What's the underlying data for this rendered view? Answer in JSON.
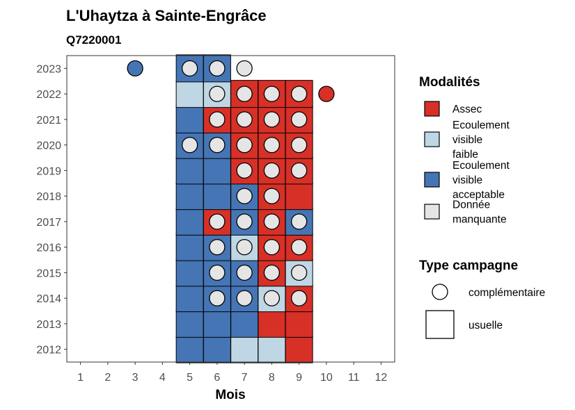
{
  "chart_data": {
    "type": "heatmap",
    "title": "L'Uhaytza à Sainte-Engrâce",
    "subtitle": "Q7220001",
    "xlabel": "Mois",
    "ylabel": "",
    "x_ticks": [
      "1",
      "2",
      "3",
      "4",
      "5",
      "6",
      "7",
      "8",
      "9",
      "10",
      "11",
      "12"
    ],
    "y_ticks": [
      "2012",
      "2013",
      "2014",
      "2015",
      "2016",
      "2017",
      "2018",
      "2019",
      "2020",
      "2021",
      "2022",
      "2023"
    ],
    "xlim": [
      0.5,
      12.5
    ],
    "ylim": [
      2011.5,
      2023.5
    ],
    "colors": {
      "assec": "#d73027",
      "faible": "#bfd7e4",
      "acceptable": "#4575b4",
      "manquante": "#e5e5e5"
    },
    "legend_modalites": {
      "title": "Modalités",
      "items": [
        {
          "key": "assec",
          "lines": [
            "Assec"
          ]
        },
        {
          "key": "faible",
          "lines": [
            "Ecoulement",
            "visible",
            "faible"
          ]
        },
        {
          "key": "acceptable",
          "lines": [
            "Ecoulement",
            "visible",
            "acceptable"
          ]
        },
        {
          "key": "manquante",
          "lines": [
            "Donnée",
            "manquante"
          ]
        }
      ]
    },
    "legend_campagne": {
      "title": "Type campagne",
      "items": [
        {
          "shape": "circle",
          "label": "complémentaire"
        },
        {
          "shape": "square",
          "label": "usuelle"
        }
      ]
    },
    "observations": [
      {
        "year": 2012,
        "month": 5,
        "value": "acceptable",
        "type": "usuelle"
      },
      {
        "year": 2012,
        "month": 6,
        "value": "acceptable",
        "type": "usuelle"
      },
      {
        "year": 2012,
        "month": 7,
        "value": "faible",
        "type": "usuelle"
      },
      {
        "year": 2012,
        "month": 8,
        "value": "faible",
        "type": "usuelle"
      },
      {
        "year": 2012,
        "month": 9,
        "value": "assec",
        "type": "usuelle"
      },
      {
        "year": 2013,
        "month": 5,
        "value": "acceptable",
        "type": "usuelle"
      },
      {
        "year": 2013,
        "month": 6,
        "value": "acceptable",
        "type": "usuelle"
      },
      {
        "year": 2013,
        "month": 7,
        "value": "acceptable",
        "type": "usuelle"
      },
      {
        "year": 2013,
        "month": 8,
        "value": "assec",
        "type": "usuelle"
      },
      {
        "year": 2013,
        "month": 9,
        "value": "assec",
        "type": "usuelle"
      },
      {
        "year": 2014,
        "month": 5,
        "value": "acceptable",
        "type": "usuelle"
      },
      {
        "year": 2014,
        "month": 6,
        "value": "acceptable",
        "type": "usuelle"
      },
      {
        "year": 2014,
        "month": 6,
        "value": "manquante",
        "type": "complémentaire"
      },
      {
        "year": 2014,
        "month": 7,
        "value": "acceptable",
        "type": "usuelle"
      },
      {
        "year": 2014,
        "month": 7,
        "value": "manquante",
        "type": "complémentaire"
      },
      {
        "year": 2014,
        "month": 8,
        "value": "faible",
        "type": "usuelle"
      },
      {
        "year": 2014,
        "month": 8,
        "value": "manquante",
        "type": "complémentaire"
      },
      {
        "year": 2014,
        "month": 9,
        "value": "assec",
        "type": "usuelle"
      },
      {
        "year": 2014,
        "month": 9,
        "value": "manquante",
        "type": "complémentaire"
      },
      {
        "year": 2015,
        "month": 5,
        "value": "acceptable",
        "type": "usuelle"
      },
      {
        "year": 2015,
        "month": 6,
        "value": "acceptable",
        "type": "usuelle"
      },
      {
        "year": 2015,
        "month": 6,
        "value": "manquante",
        "type": "complémentaire"
      },
      {
        "year": 2015,
        "month": 7,
        "value": "acceptable",
        "type": "usuelle"
      },
      {
        "year": 2015,
        "month": 7,
        "value": "manquante",
        "type": "complémentaire"
      },
      {
        "year": 2015,
        "month": 8,
        "value": "assec",
        "type": "usuelle"
      },
      {
        "year": 2015,
        "month": 8,
        "value": "manquante",
        "type": "complémentaire"
      },
      {
        "year": 2015,
        "month": 9,
        "value": "faible",
        "type": "usuelle"
      },
      {
        "year": 2015,
        "month": 9,
        "value": "manquante",
        "type": "complémentaire"
      },
      {
        "year": 2016,
        "month": 5,
        "value": "acceptable",
        "type": "usuelle"
      },
      {
        "year": 2016,
        "month": 6,
        "value": "acceptable",
        "type": "usuelle"
      },
      {
        "year": 2016,
        "month": 6,
        "value": "manquante",
        "type": "complémentaire"
      },
      {
        "year": 2016,
        "month": 7,
        "value": "faible",
        "type": "usuelle"
      },
      {
        "year": 2016,
        "month": 7,
        "value": "manquante",
        "type": "complémentaire"
      },
      {
        "year": 2016,
        "month": 8,
        "value": "assec",
        "type": "usuelle"
      },
      {
        "year": 2016,
        "month": 8,
        "value": "manquante",
        "type": "complémentaire"
      },
      {
        "year": 2016,
        "month": 9,
        "value": "assec",
        "type": "usuelle"
      },
      {
        "year": 2016,
        "month": 9,
        "value": "manquante",
        "type": "complémentaire"
      },
      {
        "year": 2017,
        "month": 5,
        "value": "acceptable",
        "type": "usuelle"
      },
      {
        "year": 2017,
        "month": 6,
        "value": "assec",
        "type": "usuelle"
      },
      {
        "year": 2017,
        "month": 6,
        "value": "manquante",
        "type": "complémentaire"
      },
      {
        "year": 2017,
        "month": 7,
        "value": "acceptable",
        "type": "usuelle"
      },
      {
        "year": 2017,
        "month": 7,
        "value": "manquante",
        "type": "complémentaire"
      },
      {
        "year": 2017,
        "month": 8,
        "value": "assec",
        "type": "usuelle"
      },
      {
        "year": 2017,
        "month": 8,
        "value": "manquante",
        "type": "complémentaire"
      },
      {
        "year": 2017,
        "month": 9,
        "value": "acceptable",
        "type": "usuelle"
      },
      {
        "year": 2017,
        "month": 9,
        "value": "manquante",
        "type": "complémentaire"
      },
      {
        "year": 2018,
        "month": 5,
        "value": "acceptable",
        "type": "usuelle"
      },
      {
        "year": 2018,
        "month": 6,
        "value": "acceptable",
        "type": "usuelle"
      },
      {
        "year": 2018,
        "month": 7,
        "value": "acceptable",
        "type": "usuelle"
      },
      {
        "year": 2018,
        "month": 7,
        "value": "manquante",
        "type": "complémentaire"
      },
      {
        "year": 2018,
        "month": 8,
        "value": "assec",
        "type": "usuelle"
      },
      {
        "year": 2018,
        "month": 8,
        "value": "manquante",
        "type": "complémentaire"
      },
      {
        "year": 2018,
        "month": 9,
        "value": "assec",
        "type": "usuelle"
      },
      {
        "year": 2019,
        "month": 5,
        "value": "acceptable",
        "type": "usuelle"
      },
      {
        "year": 2019,
        "month": 6,
        "value": "acceptable",
        "type": "usuelle"
      },
      {
        "year": 2019,
        "month": 7,
        "value": "assec",
        "type": "usuelle"
      },
      {
        "year": 2019,
        "month": 7,
        "value": "manquante",
        "type": "complémentaire"
      },
      {
        "year": 2019,
        "month": 8,
        "value": "assec",
        "type": "usuelle"
      },
      {
        "year": 2019,
        "month": 8,
        "value": "manquante",
        "type": "complémentaire"
      },
      {
        "year": 2019,
        "month": 9,
        "value": "assec",
        "type": "usuelle"
      },
      {
        "year": 2019,
        "month": 9,
        "value": "manquante",
        "type": "complémentaire"
      },
      {
        "year": 2020,
        "month": 5,
        "value": "acceptable",
        "type": "usuelle"
      },
      {
        "year": 2020,
        "month": 5,
        "value": "manquante",
        "type": "complémentaire"
      },
      {
        "year": 2020,
        "month": 6,
        "value": "acceptable",
        "type": "usuelle"
      },
      {
        "year": 2020,
        "month": 6,
        "value": "manquante",
        "type": "complémentaire"
      },
      {
        "year": 2020,
        "month": 7,
        "value": "assec",
        "type": "usuelle"
      },
      {
        "year": 2020,
        "month": 7,
        "value": "manquante",
        "type": "complémentaire"
      },
      {
        "year": 2020,
        "month": 8,
        "value": "assec",
        "type": "usuelle"
      },
      {
        "year": 2020,
        "month": 8,
        "value": "manquante",
        "type": "complémentaire"
      },
      {
        "year": 2020,
        "month": 9,
        "value": "assec",
        "type": "usuelle"
      },
      {
        "year": 2020,
        "month": 9,
        "value": "manquante",
        "type": "complémentaire"
      },
      {
        "year": 2021,
        "month": 5,
        "value": "acceptable",
        "type": "usuelle"
      },
      {
        "year": 2021,
        "month": 6,
        "value": "assec",
        "type": "usuelle"
      },
      {
        "year": 2021,
        "month": 6,
        "value": "manquante",
        "type": "complémentaire"
      },
      {
        "year": 2021,
        "month": 7,
        "value": "assec",
        "type": "usuelle"
      },
      {
        "year": 2021,
        "month": 7,
        "value": "manquante",
        "type": "complémentaire"
      },
      {
        "year": 2021,
        "month": 8,
        "value": "assec",
        "type": "usuelle"
      },
      {
        "year": 2021,
        "month": 8,
        "value": "manquante",
        "type": "complémentaire"
      },
      {
        "year": 2021,
        "month": 9,
        "value": "assec",
        "type": "usuelle"
      },
      {
        "year": 2021,
        "month": 9,
        "value": "manquante",
        "type": "complémentaire"
      },
      {
        "year": 2022,
        "month": 5,
        "value": "faible",
        "type": "usuelle"
      },
      {
        "year": 2022,
        "month": 6,
        "value": "faible",
        "type": "usuelle"
      },
      {
        "year": 2022,
        "month": 6,
        "value": "manquante",
        "type": "complémentaire"
      },
      {
        "year": 2022,
        "month": 7,
        "value": "assec",
        "type": "usuelle"
      },
      {
        "year": 2022,
        "month": 7,
        "value": "manquante",
        "type": "complémentaire"
      },
      {
        "year": 2022,
        "month": 8,
        "value": "assec",
        "type": "usuelle"
      },
      {
        "year": 2022,
        "month": 8,
        "value": "manquante",
        "type": "complémentaire"
      },
      {
        "year": 2022,
        "month": 9,
        "value": "assec",
        "type": "usuelle"
      },
      {
        "year": 2022,
        "month": 9,
        "value": "manquante",
        "type": "complémentaire"
      },
      {
        "year": 2022,
        "month": 10,
        "value": "assec",
        "type": "complémentaire"
      },
      {
        "year": 2023,
        "month": 3,
        "value": "acceptable",
        "type": "complémentaire"
      },
      {
        "year": 2023,
        "month": 5,
        "value": "acceptable",
        "type": "usuelle"
      },
      {
        "year": 2023,
        "month": 5,
        "value": "manquante",
        "type": "complémentaire"
      },
      {
        "year": 2023,
        "month": 6,
        "value": "acceptable",
        "type": "usuelle"
      },
      {
        "year": 2023,
        "month": 6,
        "value": "manquante",
        "type": "complémentaire"
      },
      {
        "year": 2023,
        "month": 7,
        "value": "manquante",
        "type": "complémentaire"
      }
    ]
  }
}
